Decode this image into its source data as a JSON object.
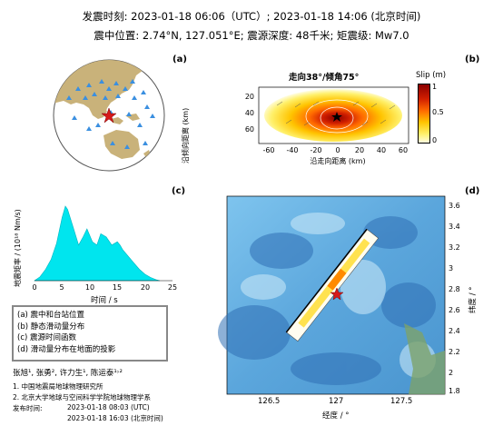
{
  "header": {
    "line1": "发震时刻: 2023-01-18 06:06（UTC）;   2023-01-18  14:06 (北京时间)",
    "line2": "震中位置: 2.74°N, 127.051°E;  震源深度: 48千米; 矩震级: Mw7.0"
  },
  "panels": {
    "a": {
      "label": "(a)"
    },
    "b": {
      "label": "(b)",
      "title": "走向38°/倾角75°",
      "ylabel": "沿倾向距离 (km)",
      "xlabel": "沿走向距离 (km)",
      "colorbar_title": "Slip (m)",
      "colorbar_ticks": [
        "1",
        "0.5",
        "0"
      ],
      "xticks": [
        "-60",
        "-40",
        "-20",
        "0",
        "20",
        "40",
        "60"
      ],
      "yticks": [
        "20",
        "40",
        "60"
      ]
    },
    "c": {
      "label": "(c)",
      "ylabel": "地震矩率 / (10¹⁸ Nm/s)",
      "xlabel": "时间 / s",
      "xticks": [
        "0",
        "5",
        "10",
        "15",
        "20",
        "25"
      ]
    },
    "d": {
      "label": "(d)",
      "xlabel": "经度 / °",
      "ylabel": "纬度 / °",
      "xticks": [
        "126.5",
        "127",
        "127.5"
      ],
      "yticks": [
        "3.6",
        "3.4",
        "3.2",
        "3",
        "2.8",
        "2.6",
        "2.4",
        "2.2",
        "2",
        "1.8"
      ]
    }
  },
  "legend": {
    "items": [
      "(a) 震中和台站位置",
      "(b) 静态滑动量分布",
      "(c) 震源时间函数",
      "(d) 滑动量分布在地面的投影"
    ]
  },
  "authors": "张旭¹, 张勇², 许力生¹, 陈运泰¹˒²",
  "affiliations": [
    "1. 中国地震局地球物理研究所",
    "2. 北京大学地球与空间科学学院地球物理学系"
  ],
  "publish": {
    "label": "发布时间:",
    "utc": "2023-01-18 08:03 (UTC)",
    "beijing": "2023-01-18 16:03 (北京时间)"
  },
  "chart_data": [
    {
      "type": "area",
      "panel": "c",
      "x": [
        0,
        1,
        2,
        3,
        4,
        5,
        5.6,
        6,
        7,
        8,
        8.8,
        9.5,
        10.5,
        11.3,
        12,
        13,
        14,
        15,
        15.5,
        16,
        17,
        18,
        19,
        20,
        21,
        22,
        22.7
      ],
      "y": [
        0,
        0.12,
        0.35,
        0.65,
        1.15,
        1.95,
        2.3,
        2.2,
        1.65,
        1.1,
        1.35,
        1.6,
        1.2,
        1.1,
        1.45,
        1.35,
        1.1,
        1.2,
        1.1,
        0.95,
        0.75,
        0.55,
        0.35,
        0.2,
        0.1,
        0.03,
        0
      ],
      "xlim": [
        0,
        25
      ],
      "color": "#00e5ee"
    }
  ]
}
